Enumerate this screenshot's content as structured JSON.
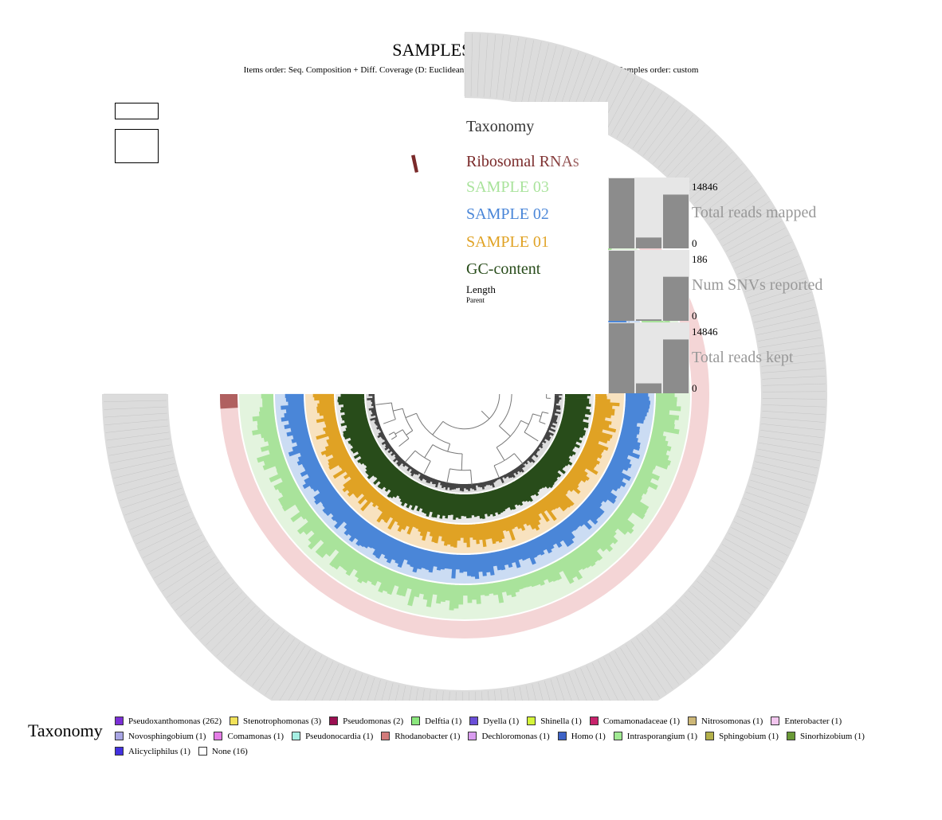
{
  "title": "SAMPLES MERGED",
  "subtitle": "Items order: Seq. Composition + Diff. Coverage (D: Euclidean; L: Ward) | Current view: mean_coverage | Samples order: custom",
  "chart_data": {
    "type": "circular_phylogram",
    "layers": [
      {
        "name": "Taxonomy",
        "color": "#dcdcdc"
      },
      {
        "name": "Ribosomal RNAs",
        "color": "#f4d5d6",
        "bar": "#7a2a2a"
      },
      {
        "name": "SAMPLE 03",
        "color": "#e3f4de",
        "bar": "#a9e39b"
      },
      {
        "name": "SAMPLE 02",
        "color": "#cbdcf3",
        "bar": "#4a86d8"
      },
      {
        "name": "SAMPLE 01",
        "color": "#f8e2bf",
        "bar": "#e0a224"
      },
      {
        "name": "GC-content",
        "color": "#e9e9e9",
        "bar": "#284c1a"
      },
      {
        "name": "Length",
        "color": "#dddddd",
        "bar": "#444444"
      },
      {
        "name": "Parent",
        "color": "#ffffff"
      }
    ],
    "layer_labels_shown": [
      "Taxonomy",
      "Ribosomal RNAs",
      "SAMPLE 03",
      "SAMPLE 02",
      "SAMPLE 01",
      "GC-content",
      "Length",
      "Parent"
    ],
    "item_label": "Pseudoxanthomonas",
    "num_items": 300,
    "sample_bars": [
      {
        "name": "Total reads mapped",
        "max": 14846,
        "min": 0,
        "values": [
          14846,
          2300,
          11400
        ]
      },
      {
        "name": "Num SNVs reported",
        "max": 186,
        "min": 0,
        "values": [
          186,
          4,
          117
        ]
      },
      {
        "name": "Total reads kept",
        "max": 14846,
        "min": 0,
        "values": [
          14846,
          2100,
          11400
        ]
      }
    ]
  },
  "legend": {
    "title": "Taxonomy",
    "items": [
      {
        "label": "Pseudoxanthomonas (262)",
        "color": "#7b2fd6"
      },
      {
        "label": "Stenotrophomonas (3)",
        "color": "#f2e25a"
      },
      {
        "label": "Pseudomonas (2)",
        "color": "#9b0f52"
      },
      {
        "label": "Delftia (1)",
        "color": "#8be77d"
      },
      {
        "label": "Dyella (1)",
        "color": "#6a4ed8"
      },
      {
        "label": "Shinella (1)",
        "color": "#d5f53a"
      },
      {
        "label": "Comamonadaceae (1)",
        "color": "#c8236c"
      },
      {
        "label": "Nitrosomonas (1)",
        "color": "#cdb777"
      },
      {
        "label": "Enterobacter (1)",
        "color": "#f3c6ef"
      },
      {
        "label": "Novosphingobium (1)",
        "color": "#a9a6e4"
      },
      {
        "label": "Comamonas (1)",
        "color": "#e57ee7"
      },
      {
        "label": "Pseudonocardia (1)",
        "color": "#a6efe3"
      },
      {
        "label": "Rhodanobacter (1)",
        "color": "#d27b7b"
      },
      {
        "label": "Dechloromonas (1)",
        "color": "#d99cef"
      },
      {
        "label": "Homo (1)",
        "color": "#3d62c6"
      },
      {
        "label": "Intrasporangium (1)",
        "color": "#a1ea93"
      },
      {
        "label": "Sphingobium (1)",
        "color": "#b3b04a"
      },
      {
        "label": "Sinorhizobium (1)",
        "color": "#6a9a37"
      },
      {
        "label": "Alicycliphilus (1)",
        "color": "#4231e0"
      },
      {
        "label": "None (16)",
        "color": "#ffffff"
      }
    ]
  }
}
